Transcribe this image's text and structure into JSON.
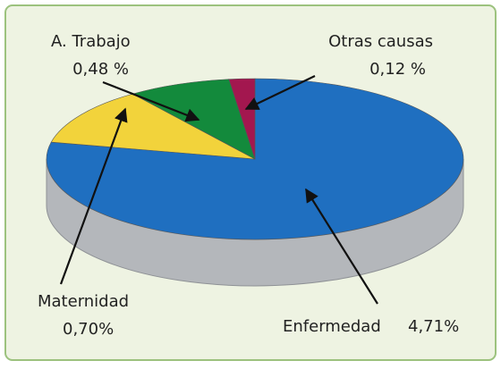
{
  "chart_data": {
    "type": "pie",
    "categories": [
      "Enfermedad",
      "Maternidad",
      "A. Trabajo",
      "Otras causas"
    ],
    "values": [
      4.71,
      0.7,
      0.48,
      0.12
    ],
    "value_labels": [
      "4,71%",
      "0,70%",
      "0,48 %",
      "0,12 %"
    ],
    "colors": [
      "#1f6fc0",
      "#f2d33b",
      "#138a3c",
      "#a3174f"
    ]
  }
}
